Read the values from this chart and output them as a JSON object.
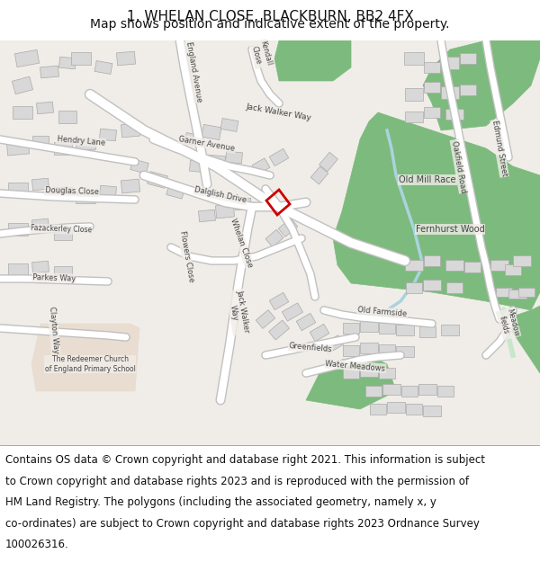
{
  "title_line1": "1, WHELAN CLOSE, BLACKBURN, BB2 4FX",
  "title_line2": "Map shows position and indicative extent of the property.",
  "title_fontsize": 11,
  "subtitle_fontsize": 10,
  "footer_fontsize": 8.5,
  "map_bg": "#f0ede8",
  "road_color": "#ffffff",
  "road_outline": "#cccccc",
  "green_color": "#7dba7d",
  "green_light": "#b8d9b8",
  "school_color": "#e8ddd0",
  "water_color": "#aad3df",
  "text_color": "#333333",
  "border_color": "#cccccc",
  "plot_outline_color": "#cc0000",
  "title_bg": "#ffffff",
  "footer_bg": "#ffffff",
  "footer_lines": [
    "Contains OS data © Crown copyright and database right 2021. This information is subject",
    "to Crown copyright and database rights 2023 and is reproduced with the permission of",
    "HM Land Registry. The polygons (including the associated geometry, namely x, y",
    "co-ordinates) are subject to Crown copyright and database rights 2023 Ordnance Survey",
    "100026316."
  ]
}
